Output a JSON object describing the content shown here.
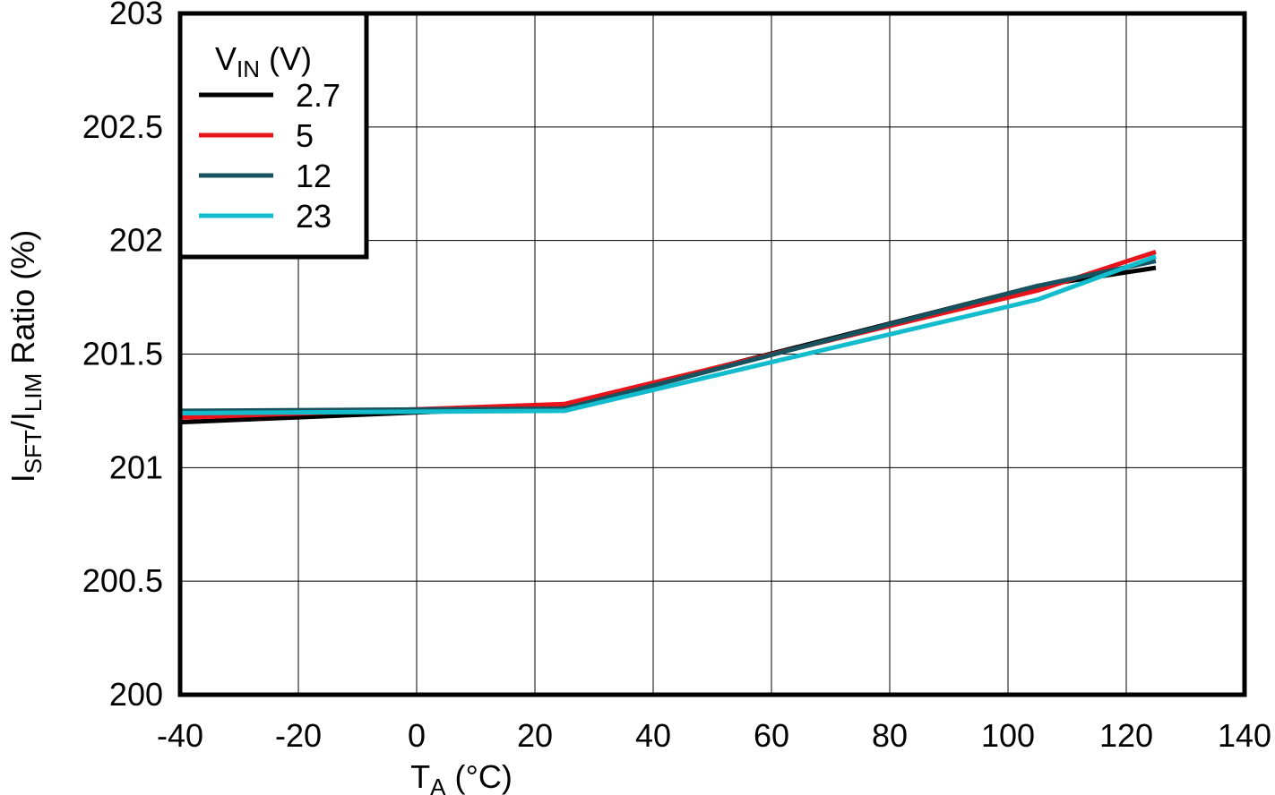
{
  "chart_data": {
    "type": "line",
    "x_label": [
      "T",
      "A",
      " (°C)"
    ],
    "y_label": [
      "I",
      "SFT",
      "/I",
      "LIM",
      " Ratio (%)"
    ],
    "legend_title": [
      "V",
      "IN",
      " (V)"
    ],
    "legend": "upper left",
    "grid": true,
    "x": [
      -40,
      25,
      105,
      125
    ],
    "xlim": [
      -40,
      140
    ],
    "xticks": [
      -40,
      -20,
      0,
      20,
      40,
      60,
      80,
      100,
      120,
      140
    ],
    "ylim": [
      200,
      203
    ],
    "yticks": [
      200,
      200.5,
      201,
      201.5,
      202,
      202.5,
      203
    ],
    "series": [
      {
        "name": "2.7",
        "color": "#000000",
        "values": [
          201.2,
          201.27,
          201.8,
          201.88
        ]
      },
      {
        "name": "5",
        "color": "#e8141b",
        "values": [
          201.22,
          201.28,
          201.78,
          201.95
        ]
      },
      {
        "name": "12",
        "color": "#17535f",
        "values": [
          201.25,
          201.26,
          201.8,
          201.91
        ]
      },
      {
        "name": "23",
        "color": "#12bccd",
        "values": [
          201.24,
          201.25,
          201.74,
          201.93
        ]
      }
    ]
  }
}
